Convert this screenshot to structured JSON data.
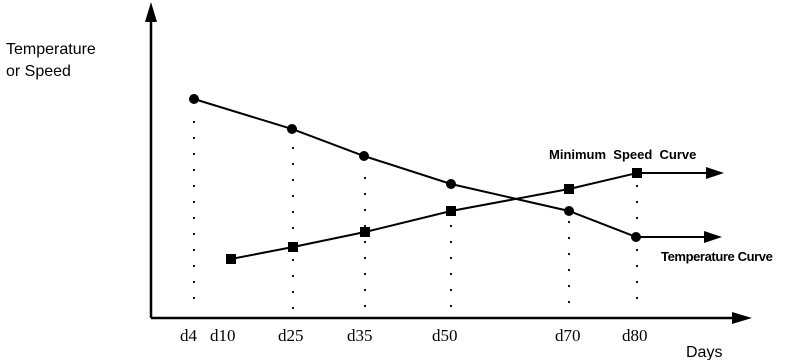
{
  "axes": {
    "y_label_line1": "Temperature",
    "y_label_line2": "or Speed",
    "x_label": "Days"
  },
  "ticks": [
    "d4",
    "d10",
    "d25",
    "d35",
    "d50",
    "d70",
    "d80"
  ],
  "curves": {
    "temperature": {
      "label": "Temperature Curve",
      "marker": "circle",
      "trend": "decreasing",
      "points_at": [
        "d4",
        "d25",
        "d35",
        "d50",
        "d70",
        "d80"
      ]
    },
    "minimum_speed": {
      "label": "Minimum  Speed  Curve",
      "marker": "square",
      "trend": "increasing",
      "points_at": [
        "d10",
        "d25",
        "d35",
        "d50",
        "d70",
        "d80"
      ]
    }
  },
  "colors": {
    "ink": "#000000",
    "background": "#ffffff"
  }
}
